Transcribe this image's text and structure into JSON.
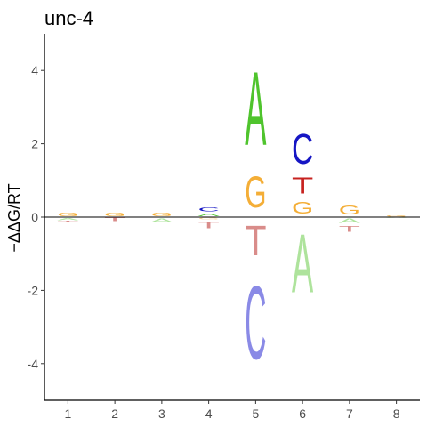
{
  "chart_data": {
    "type": "sequence-logo",
    "title": "unc-4",
    "xlabel": "",
    "ylabel": "−ΔΔG/RT",
    "xlim": [
      0.5,
      8.5
    ],
    "ylim": [
      -5.0,
      5.0
    ],
    "x_ticks": [
      1,
      2,
      3,
      4,
      5,
      6,
      7,
      8
    ],
    "y_ticks": [
      -4,
      -2,
      0,
      2,
      4
    ],
    "zero_line": true,
    "grid": false,
    "colors": {
      "A": "#4fc42d",
      "C": "#1616c4",
      "G": "#f4ae37",
      "T": "#c7221f"
    },
    "negative_colors": {
      "A": "#aee39c",
      "C": "#8a8ae6",
      "G": "#f8cf8e",
      "T": "#d98c8a"
    },
    "positions": [
      {
        "pos": 1,
        "positive": [
          {
            "letter": "G",
            "value": 0.14
          }
        ],
        "negative": [
          {
            "letter": "A",
            "value": 0.1
          },
          {
            "letter": "T",
            "value": 0.06
          }
        ]
      },
      {
        "pos": 2,
        "positive": [
          {
            "letter": "G",
            "value": 0.14
          }
        ],
        "negative": [
          {
            "letter": "T",
            "value": 0.14
          }
        ]
      },
      {
        "pos": 3,
        "positive": [
          {
            "letter": "G",
            "value": 0.14
          }
        ],
        "negative": [
          {
            "letter": "A",
            "value": 0.16
          }
        ]
      },
      {
        "pos": 4,
        "positive": [
          {
            "letter": "A",
            "value": 0.12
          },
          {
            "letter": "C",
            "value": 0.18
          }
        ],
        "negative": [
          {
            "letter": "G",
            "value": 0.08
          },
          {
            "letter": "T",
            "value": 0.28
          }
        ]
      },
      {
        "pos": 5,
        "positive": [
          {
            "letter": "G",
            "value": 1.35
          },
          {
            "letter": "A",
            "value": 3.2
          }
        ],
        "negative": [
          {
            "letter": "T",
            "value": 1.3
          },
          {
            "letter": "C",
            "value": 3.2
          }
        ]
      },
      {
        "pos": 6,
        "positive": [
          {
            "letter": "G",
            "value": 0.5
          },
          {
            "letter": "T",
            "value": 0.7
          },
          {
            "letter": "C",
            "value": 1.3
          }
        ],
        "negative": [
          {
            "letter": "A",
            "value": 2.55
          }
        ]
      },
      {
        "pos": 7,
        "positive": [
          {
            "letter": "G",
            "value": 0.4
          }
        ],
        "negative": [
          {
            "letter": "A",
            "value": 0.2
          },
          {
            "letter": "T",
            "value": 0.25
          }
        ]
      },
      {
        "pos": 8,
        "positive": [
          {
            "letter": "G",
            "value": 0.04
          }
        ],
        "negative": [
          {
            "letter": "A",
            "value": 0.03
          }
        ]
      }
    ]
  }
}
